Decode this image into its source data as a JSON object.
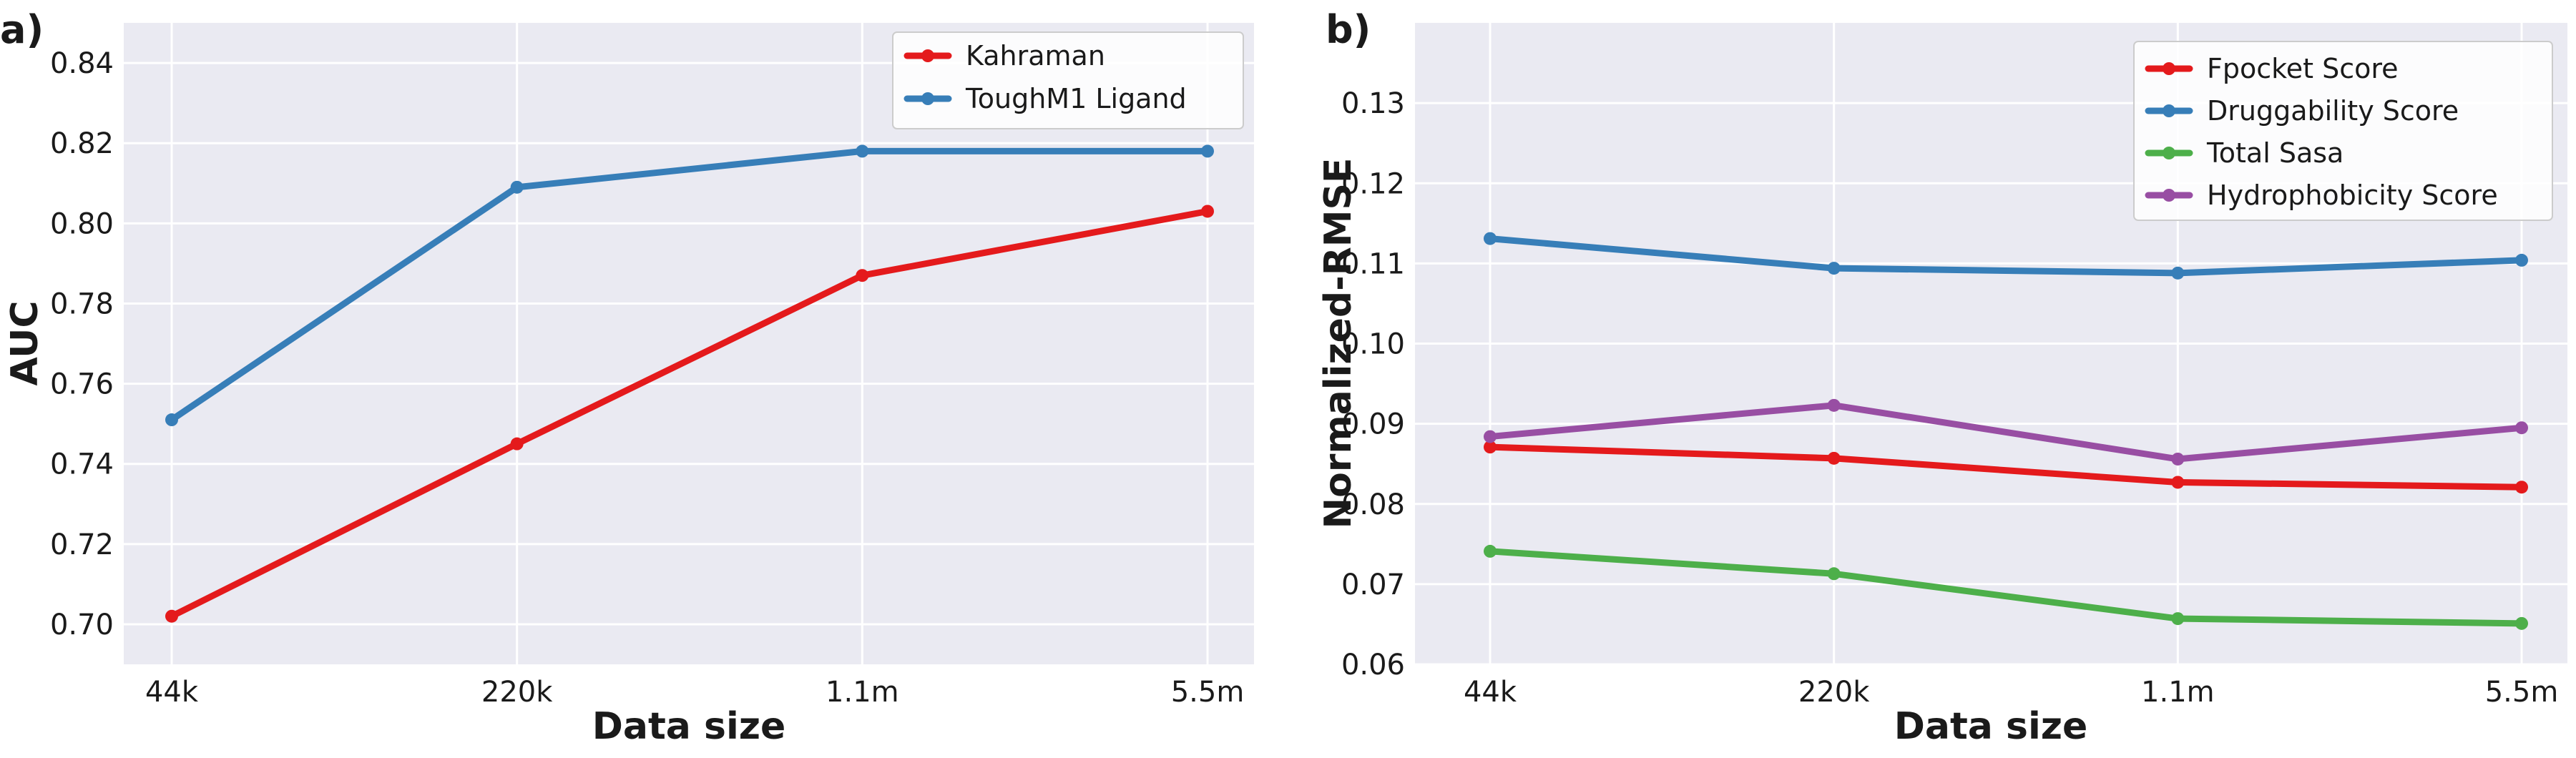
{
  "chart_data": [
    {
      "type": "line",
      "panel_label": "a)",
      "xlabel": "Data size",
      "ylabel": "AUC",
      "categories": [
        "44k",
        "220k",
        "1.1m",
        "5.5m"
      ],
      "ylim": [
        0.69,
        0.85
      ],
      "yticks": [
        0.7,
        0.72,
        0.74,
        0.76,
        0.78,
        0.8,
        0.82,
        0.84
      ],
      "grid": true,
      "legend_position": "top-right",
      "series": [
        {
          "name": "Kahraman",
          "color": "#e41a1c",
          "values": [
            0.702,
            0.745,
            0.787,
            0.803
          ]
        },
        {
          "name": "ToughM1 Ligand",
          "color": "#377eb8",
          "values": [
            0.751,
            0.809,
            0.818,
            0.818
          ]
        }
      ]
    },
    {
      "type": "line",
      "panel_label": "b)",
      "xlabel": "Data size",
      "ylabel": "Normalized-RMSE",
      "categories": [
        "44k",
        "220k",
        "1.1m",
        "5.5m"
      ],
      "ylim": [
        0.06,
        0.14
      ],
      "yticks": [
        0.06,
        0.07,
        0.08,
        0.09,
        0.1,
        0.11,
        0.12,
        0.13
      ],
      "grid": true,
      "legend_position": "top-right",
      "series": [
        {
          "name": "Fpocket Score",
          "color": "#e41a1c",
          "values": [
            0.0871,
            0.0857,
            0.0827,
            0.0821
          ]
        },
        {
          "name": "Druggability Score",
          "color": "#377eb8",
          "values": [
            0.1131,
            0.1094,
            0.1088,
            0.1104
          ]
        },
        {
          "name": "Total Sasa",
          "color": "#4daf4a",
          "values": [
            0.0741,
            0.0713,
            0.0657,
            0.0651
          ]
        },
        {
          "name": "Hydrophobicity Score",
          "color": "#984ea3",
          "values": [
            0.0884,
            0.0923,
            0.0856,
            0.0895
          ]
        }
      ]
    }
  ]
}
